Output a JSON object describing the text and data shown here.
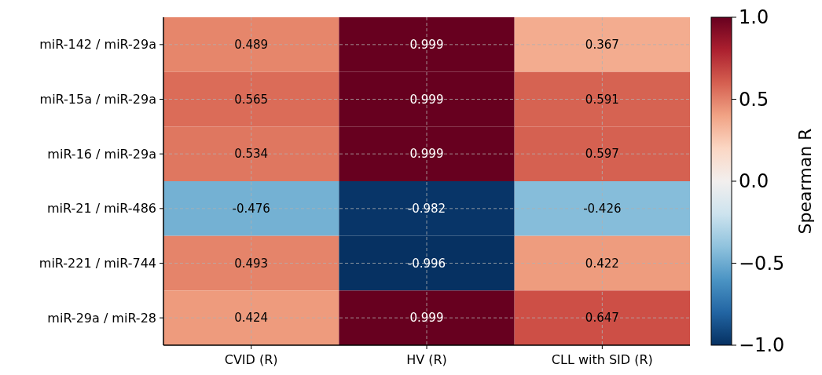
{
  "chart_data": {
    "type": "heatmap",
    "categories": [
      "CVID (R)",
      "HV (R)",
      "CLL with SID (R)"
    ],
    "y_categories": [
      "miR-142 / miR-29a",
      "miR-15a / miR-29a",
      "miR-16 / miR-29a",
      "miR-21 / miR-486",
      "miR-221 / miR-744",
      "miR-29a / miR-28"
    ],
    "cells": [
      [
        0.489,
        0.999,
        0.367
      ],
      [
        0.565,
        0.999,
        0.591
      ],
      [
        0.534,
        0.999,
        0.597
      ],
      [
        -0.476,
        -0.982,
        -0.426
      ],
      [
        0.493,
        -0.996,
        0.422
      ],
      [
        0.424,
        0.999,
        0.647
      ]
    ],
    "data_labels": true,
    "clabel": "Spearman R",
    "clim": [
      -1,
      1
    ],
    "cticks": [
      {
        "value": -1,
        "label": "−1.0"
      },
      {
        "value": -0.5,
        "label": "−0.5"
      },
      {
        "value": 0,
        "label": "0.0"
      },
      {
        "value": 0.5,
        "label": "0.5"
      },
      {
        "value": 1,
        "label": "1.0"
      }
    ],
    "grid": true
  }
}
